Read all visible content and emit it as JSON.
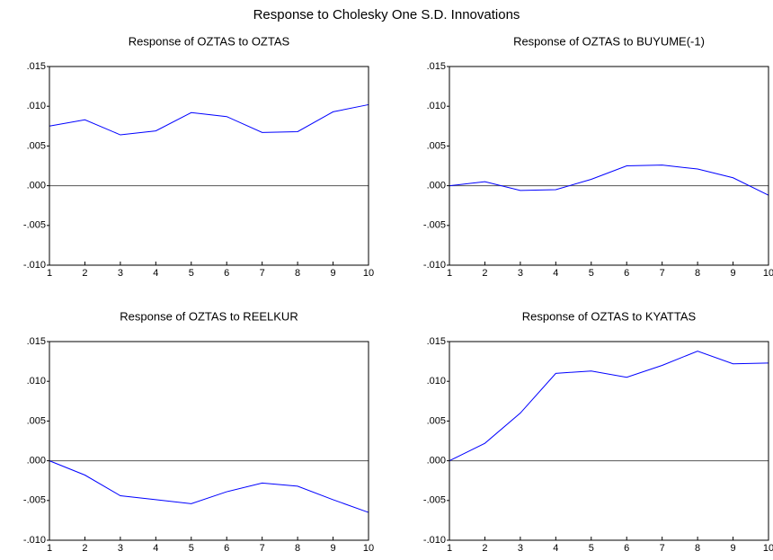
{
  "title": "Response to Cholesky One S.D. Innovations",
  "chart_data": [
    {
      "type": "line",
      "title": "Response of OZTAS to OZTAS",
      "x": [
        1,
        2,
        3,
        4,
        5,
        6,
        7,
        8,
        9,
        10
      ],
      "series": [
        {
          "color": "#0000ff",
          "values": [
            0.0075,
            0.0083,
            0.0064,
            0.0069,
            0.0092,
            0.0087,
            0.0067,
            0.0068,
            0.0093,
            0.0102
          ]
        }
      ],
      "xlim": [
        1,
        10
      ],
      "xticks": [
        1,
        2,
        3,
        4,
        5,
        6,
        7,
        8,
        9,
        10
      ],
      "ylim": [
        -0.01,
        0.015
      ],
      "yticks": [
        {
          "value": -0.01,
          "label": "-.010"
        },
        {
          "value": -0.005,
          "label": "-.005"
        },
        {
          "value": 0,
          "label": ".000"
        },
        {
          "value": 0.005,
          "label": ".005"
        },
        {
          "value": 0.01,
          "label": ".010"
        },
        {
          "value": 0.015,
          "label": ".015"
        }
      ]
    },
    {
      "type": "line",
      "title": "Response of OZTAS to BUYUME(-1)",
      "x": [
        1,
        2,
        3,
        4,
        5,
        6,
        7,
        8,
        9,
        10
      ],
      "series": [
        {
          "color": "#0000ff",
          "values": [
            0.0,
            0.0005,
            -0.0006,
            -0.0005,
            0.0008,
            0.0025,
            0.0026,
            0.0021,
            0.001,
            -0.0012
          ]
        }
      ],
      "xlim": [
        1,
        10
      ],
      "xticks": [
        1,
        2,
        3,
        4,
        5,
        6,
        7,
        8,
        9,
        10
      ],
      "ylim": [
        -0.01,
        0.015
      ],
      "yticks": [
        {
          "value": -0.01,
          "label": "-.010"
        },
        {
          "value": -0.005,
          "label": "-.005"
        },
        {
          "value": 0,
          "label": ".000"
        },
        {
          "value": 0.005,
          "label": ".005"
        },
        {
          "value": 0.01,
          "label": ".010"
        },
        {
          "value": 0.015,
          "label": ".015"
        }
      ]
    },
    {
      "type": "line",
      "title": "Response of OZTAS to REELKUR",
      "x": [
        1,
        2,
        3,
        4,
        5,
        6,
        7,
        8,
        9,
        10
      ],
      "series": [
        {
          "color": "#0000ff",
          "values": [
            0.0,
            -0.0018,
            -0.0044,
            -0.0049,
            -0.0054,
            -0.0039,
            -0.0028,
            -0.0032,
            -0.0049,
            -0.0065
          ]
        }
      ],
      "xlim": [
        1,
        10
      ],
      "xticks": [
        1,
        2,
        3,
        4,
        5,
        6,
        7,
        8,
        9,
        10
      ],
      "ylim": [
        -0.01,
        0.015
      ],
      "yticks": [
        {
          "value": -0.01,
          "label": "-.010"
        },
        {
          "value": -0.005,
          "label": "-.005"
        },
        {
          "value": 0,
          "label": ".000"
        },
        {
          "value": 0.005,
          "label": ".005"
        },
        {
          "value": 0.01,
          "label": ".010"
        },
        {
          "value": 0.015,
          "label": ".015"
        }
      ]
    },
    {
      "type": "line",
      "title": "Response of OZTAS to KYATTAS",
      "x": [
        1,
        2,
        3,
        4,
        5,
        6,
        7,
        8,
        9,
        10
      ],
      "series": [
        {
          "color": "#0000ff",
          "values": [
            0.0,
            0.0022,
            0.006,
            0.011,
            0.0113,
            0.0105,
            0.012,
            0.0138,
            0.0122,
            0.0123
          ]
        }
      ],
      "xlim": [
        1,
        10
      ],
      "xticks": [
        1,
        2,
        3,
        4,
        5,
        6,
        7,
        8,
        9,
        10
      ],
      "ylim": [
        -0.01,
        0.015
      ],
      "yticks": [
        {
          "value": -0.01,
          "label": "-.010"
        },
        {
          "value": -0.005,
          "label": "-.005"
        },
        {
          "value": 0,
          "label": ".000"
        },
        {
          "value": 0.005,
          "label": ".005"
        },
        {
          "value": 0.01,
          "label": ".010"
        },
        {
          "value": 0.015,
          "label": ".015"
        }
      ]
    }
  ]
}
